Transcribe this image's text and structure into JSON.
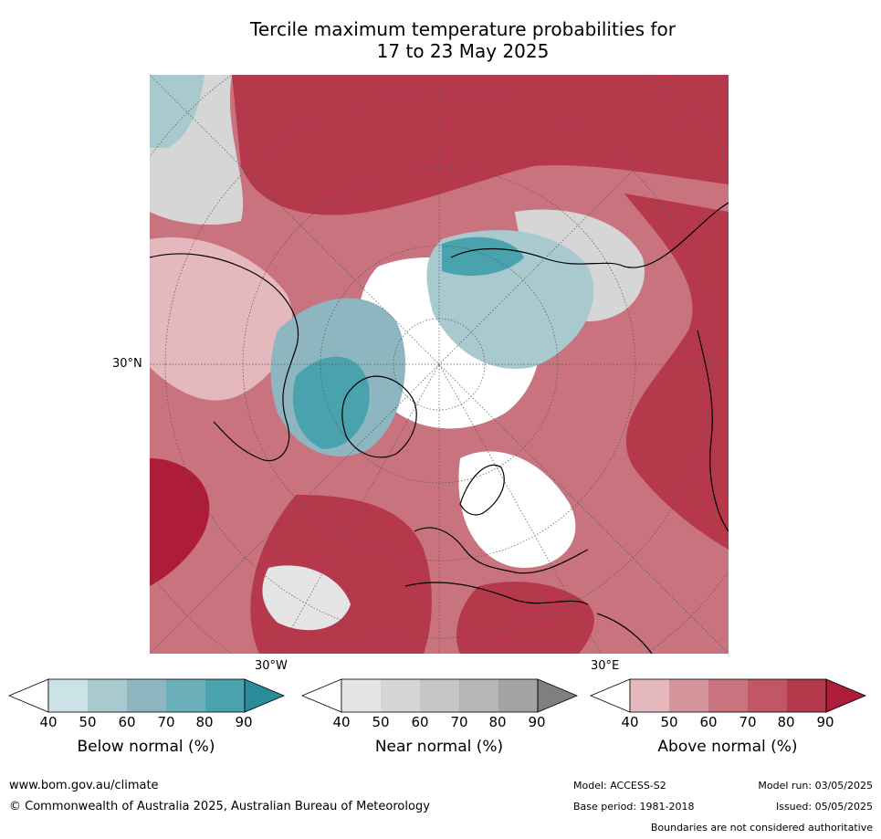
{
  "title_line1": "Tercile maximum temperature probabilities for",
  "title_line2": "17 to 23 May 2025",
  "axis_labels": {
    "lat_30n": "30°N",
    "lon_30w": "30°W",
    "lon_30e": "30°E"
  },
  "colorbars": [
    {
      "label": "Below normal (%)",
      "ticks": [
        "40",
        "50",
        "60",
        "70",
        "80",
        "90"
      ],
      "colors": [
        "#ffffff",
        "#cbe2e6",
        "#a8cace",
        "#8db6c1",
        "#6aaeb8",
        "#4aa2ae",
        "#2a8c9a"
      ]
    },
    {
      "label": "Near normal (%)",
      "ticks": [
        "40",
        "50",
        "60",
        "70",
        "80",
        "90"
      ],
      "colors": [
        "#ffffff",
        "#e5e5e5",
        "#d6d6d6",
        "#c6c6c6",
        "#b6b6b6",
        "#a3a3a3",
        "#7f7f7f"
      ]
    },
    {
      "label": "Above normal (%)",
      "ticks": [
        "40",
        "50",
        "60",
        "70",
        "80",
        "90"
      ],
      "colors": [
        "#ffffff",
        "#e4b8bd",
        "#d5959d",
        "#c9737f",
        "#c15665",
        "#b6384b",
        "#ad1c38"
      ]
    }
  ],
  "footer": {
    "website": "www.bom.gov.au/climate",
    "copyright": "© Commonwealth of Australia 2025, Australian Bureau of Meteorology",
    "model": "Model: ACCESS-S2",
    "base_period": "Base period: 1981-2018",
    "model_run": "Model run: 03/05/2025",
    "issued": "Issued: 05/05/2025",
    "disclaimer": "Boundaries are not considered authoritative"
  }
}
